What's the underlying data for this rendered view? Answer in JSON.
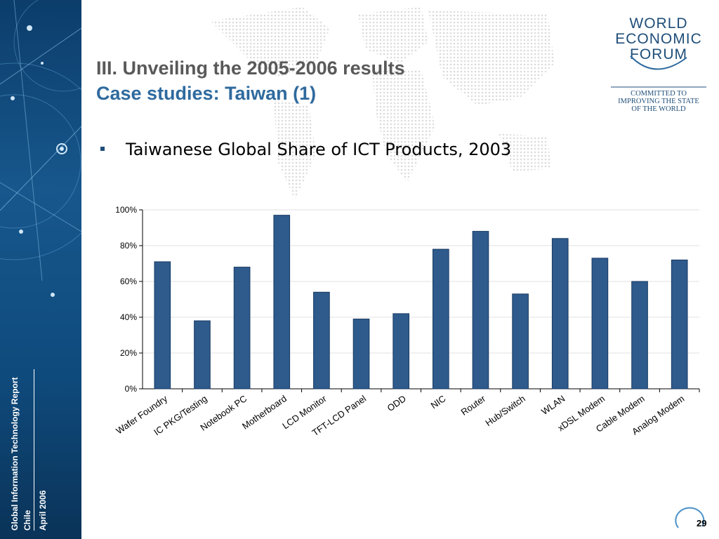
{
  "slide": {
    "title_line1": "III. Unveiling the 2005-2006 results",
    "title_line2": "Case studies: Taiwan (1)",
    "bullet_text": "Taiwanese Global Share of ICT Products, 2003",
    "page_number": "29"
  },
  "sidebar": {
    "report": "Global Information Technology Report",
    "location": "Chile",
    "date": "April 2006"
  },
  "logo": {
    "line1": "WORLD",
    "line2": "ECONOMIC",
    "line3": "FORUM",
    "tagline1": "COMMITTED TO",
    "tagline2": "IMPROVING THE STATE",
    "tagline3": "OF THE WORLD"
  },
  "colors": {
    "bar": "#2e5a8c",
    "sidebar": "#17578c",
    "title_accent": "#2f6a9e"
  },
  "chart_data": {
    "type": "bar",
    "categories": [
      "Wafer Foundry",
      "IC PKG/Testing",
      "Notebook PC",
      "Motherboard",
      "LCD Monitor",
      "TFT-LCD Panel",
      "ODD",
      "NIC",
      "Router",
      "Hub/Switch",
      "WLAN",
      "xDSL Modem",
      "Cable Modem",
      "Analog Modem"
    ],
    "values": [
      71,
      38,
      68,
      97,
      54,
      39,
      42,
      78,
      88,
      53,
      84,
      73,
      60,
      72
    ],
    "yticks": [
      "0%",
      "20%",
      "40%",
      "60%",
      "80%",
      "100%"
    ],
    "ylim": [
      0,
      100
    ],
    "grid": true,
    "title": "",
    "xlabel": "",
    "ylabel": ""
  }
}
